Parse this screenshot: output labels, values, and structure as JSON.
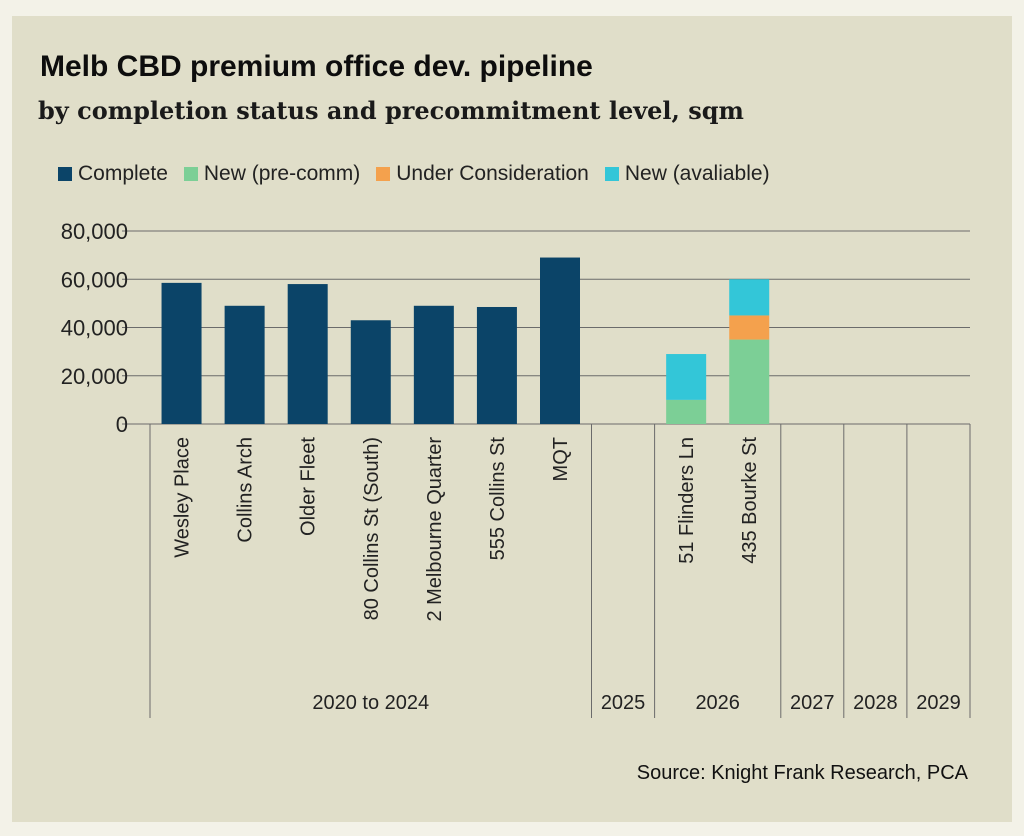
{
  "header": {
    "title": "Melb CBD premium office dev. pipeline",
    "subtitle": "by completion status and precommitment level, sqm"
  },
  "source": "Source: Knight Frank Research, PCA",
  "colors": {
    "background": "#e0dec9",
    "complete": "#0b4468",
    "new_precomm": "#7ccf96",
    "under_consideration": "#f4a14d",
    "new_available": "#33c6d8",
    "grid": "#6b6b6b"
  },
  "chart_data": {
    "type": "bar",
    "stacked": true,
    "title": "Melb CBD premium office dev. pipeline",
    "subtitle": "by completion status and precommitment level, sqm",
    "categories": [
      "Wesley Place",
      "Collins Arch",
      "Older Fleet",
      "80 Collins St (South)",
      "2 Melbourne Quarter",
      "555 Collins St",
      "MQT",
      "",
      "51 Flinders Ln",
      "435 Bourke St",
      "",
      "",
      ""
    ],
    "groups": [
      {
        "label": "2020 to 2024",
        "categories": [
          0,
          1,
          2,
          3,
          4,
          5,
          6
        ]
      },
      {
        "label": "2025",
        "categories": [
          7
        ]
      },
      {
        "label": "2026",
        "categories": [
          8,
          9
        ]
      },
      {
        "label": "2027",
        "categories": [
          10
        ]
      },
      {
        "label": "2028",
        "categories": [
          11
        ]
      },
      {
        "label": "2029",
        "categories": [
          12
        ]
      }
    ],
    "series": [
      {
        "name": "Complete",
        "color": "#0b4468",
        "values": [
          58500,
          49000,
          58000,
          43000,
          49000,
          48500,
          69000,
          0,
          0,
          0,
          0,
          0,
          0
        ]
      },
      {
        "name": "New (pre-comm)",
        "color": "#7ccf96",
        "values": [
          0,
          0,
          0,
          0,
          0,
          0,
          0,
          0,
          10000,
          35000,
          0,
          0,
          0
        ]
      },
      {
        "name": "Under Consideration",
        "color": "#f4a14d",
        "values": [
          0,
          0,
          0,
          0,
          0,
          0,
          0,
          0,
          0,
          10000,
          0,
          0,
          0
        ]
      },
      {
        "name": "New (avaliable)",
        "color": "#33c6d8",
        "values": [
          0,
          0,
          0,
          0,
          0,
          0,
          0,
          0,
          19000,
          15000,
          0,
          0,
          0
        ]
      }
    ],
    "y_ticks": [
      "0",
      "20,000",
      "40,000",
      "60,000",
      "80,000"
    ],
    "ylim": [
      0,
      80000
    ],
    "grid": true,
    "legend_position": "top-left"
  }
}
